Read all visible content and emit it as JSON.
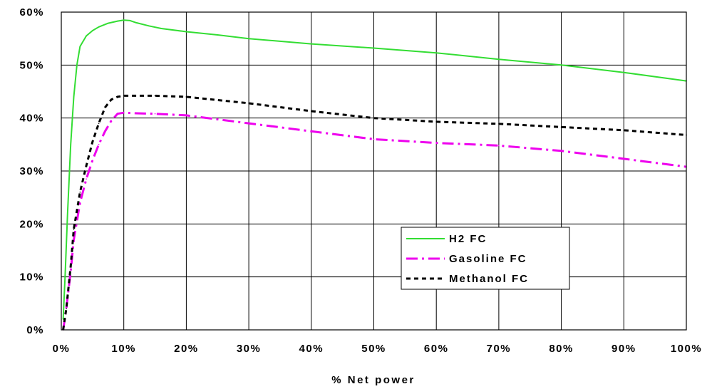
{
  "chart_data": {
    "type": "line",
    "title": "",
    "xlabel": "% Net power",
    "ylabel": "",
    "xlim": [
      0,
      100
    ],
    "ylim": [
      0,
      60
    ],
    "grid": true,
    "legend_position": "lower-right",
    "x_ticks": [
      "0%",
      "10%",
      "20%",
      "30%",
      "40%",
      "50%",
      "60%",
      "70%",
      "80%",
      "90%",
      "100%"
    ],
    "y_ticks": [
      "0%",
      "10%",
      "20%",
      "30%",
      "40%",
      "50%",
      "60%"
    ],
    "series": [
      {
        "name": "H2 FC",
        "color": "#33dd33",
        "style": "solid",
        "points": [
          [
            0.3,
            2
          ],
          [
            0.6,
            10
          ],
          [
            1,
            22
          ],
          [
            1.5,
            35
          ],
          [
            2,
            44
          ],
          [
            2.5,
            50
          ],
          [
            3,
            53.5
          ],
          [
            4,
            55.5
          ],
          [
            5,
            56.5
          ],
          [
            6,
            57.2
          ],
          [
            7.5,
            57.9
          ],
          [
            9,
            58.3
          ],
          [
            10,
            58.5
          ],
          [
            11,
            58.4
          ],
          [
            12,
            58
          ],
          [
            14,
            57.4
          ],
          [
            16,
            56.9
          ],
          [
            20,
            56.3
          ],
          [
            25,
            55.7
          ],
          [
            30,
            55
          ],
          [
            40,
            54
          ],
          [
            50,
            53.2
          ],
          [
            60,
            52.3
          ],
          [
            70,
            51.1
          ],
          [
            80,
            50
          ],
          [
            90,
            48.6
          ],
          [
            100,
            47
          ]
        ]
      },
      {
        "name": "Gasoline FC",
        "color": "#ee00ee",
        "style": "dash-dot",
        "points": [
          [
            0.3,
            0
          ],
          [
            0.8,
            4
          ],
          [
            1.5,
            11
          ],
          [
            2,
            17
          ],
          [
            3,
            24
          ],
          [
            4,
            28.5
          ],
          [
            5,
            32
          ],
          [
            6,
            35
          ],
          [
            7,
            37.5
          ],
          [
            8,
            39.5
          ],
          [
            9,
            40.8
          ],
          [
            10,
            41
          ],
          [
            12,
            40.9
          ],
          [
            15,
            40.8
          ],
          [
            20,
            40.5
          ],
          [
            30,
            39
          ],
          [
            40,
            37.5
          ],
          [
            50,
            36
          ],
          [
            60,
            35.3
          ],
          [
            70,
            34.8
          ],
          [
            80,
            33.8
          ],
          [
            90,
            32.3
          ],
          [
            100,
            30.8
          ]
        ]
      },
      {
        "name": "Methanol FC",
        "color": "#000000",
        "style": "dashed",
        "points": [
          [
            0.3,
            0
          ],
          [
            0.8,
            4
          ],
          [
            1.5,
            12
          ],
          [
            2,
            19
          ],
          [
            3,
            26
          ],
          [
            4,
            31
          ],
          [
            5,
            35.5
          ],
          [
            6,
            39
          ],
          [
            7,
            42
          ],
          [
            8,
            43.5
          ],
          [
            9,
            44
          ],
          [
            10,
            44.2
          ],
          [
            15,
            44.2
          ],
          [
            20,
            44
          ],
          [
            30,
            42.8
          ],
          [
            40,
            41.3
          ],
          [
            50,
            40
          ],
          [
            60,
            39.3
          ],
          [
            70,
            38.9
          ],
          [
            80,
            38.3
          ],
          [
            90,
            37.7
          ],
          [
            100,
            36.8
          ]
        ]
      }
    ]
  }
}
